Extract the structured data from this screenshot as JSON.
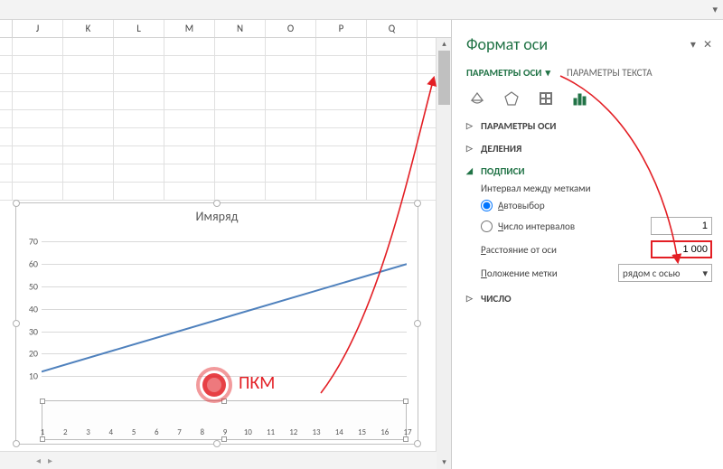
{
  "top": {
    "dropdown_glyph": "▾"
  },
  "columns": [
    "J",
    "K",
    "L",
    "M",
    "N",
    "O",
    "P",
    "Q"
  ],
  "chart": {
    "title": "Имяряд",
    "y_ticks": [
      10,
      20,
      30,
      40,
      50,
      60,
      70
    ],
    "y_min": 0,
    "y_max": 75,
    "x_ticks": [
      1,
      2,
      3,
      4,
      5,
      6,
      7,
      8,
      9,
      10,
      11,
      12,
      13,
      14,
      15,
      16,
      17
    ],
    "series": {
      "color": "#4f81bd",
      "width": 2,
      "x1": 1,
      "y1": 12,
      "x2": 17,
      "y2": 60
    },
    "grid_color": "#d9d9d9",
    "title_color": "#595959"
  },
  "annotation": {
    "pkm_label": "ПКМ",
    "color": "#e31e24"
  },
  "pane": {
    "title": "Формат оси",
    "tab_axis": "ПАРАМЕТРЫ ОСИ",
    "tab_text": "ПАРАМЕТРЫ ТЕКСТА",
    "sections": {
      "axis_params": "ПАРАМЕТРЫ ОСИ",
      "ticks": "ДЕЛЕНИЯ",
      "labels": "ПОДПИСИ",
      "number": "ЧИСЛО"
    },
    "labels_body": {
      "interval_caption": "Интервал между метками",
      "auto_label_pre": "А",
      "auto_label_rest": "втовыбор",
      "count_label_pre": "Ч",
      "count_label_rest": "исло интервалов",
      "count_value": "1",
      "distance_label_pre": "Р",
      "distance_label_rest": "асстояние от оси",
      "distance_value": "1 000",
      "position_label_pre": "П",
      "position_label_rest": "оложение метки",
      "position_value": "рядом с осью"
    },
    "close_glyph": "✕",
    "menu_glyph": "▾"
  }
}
